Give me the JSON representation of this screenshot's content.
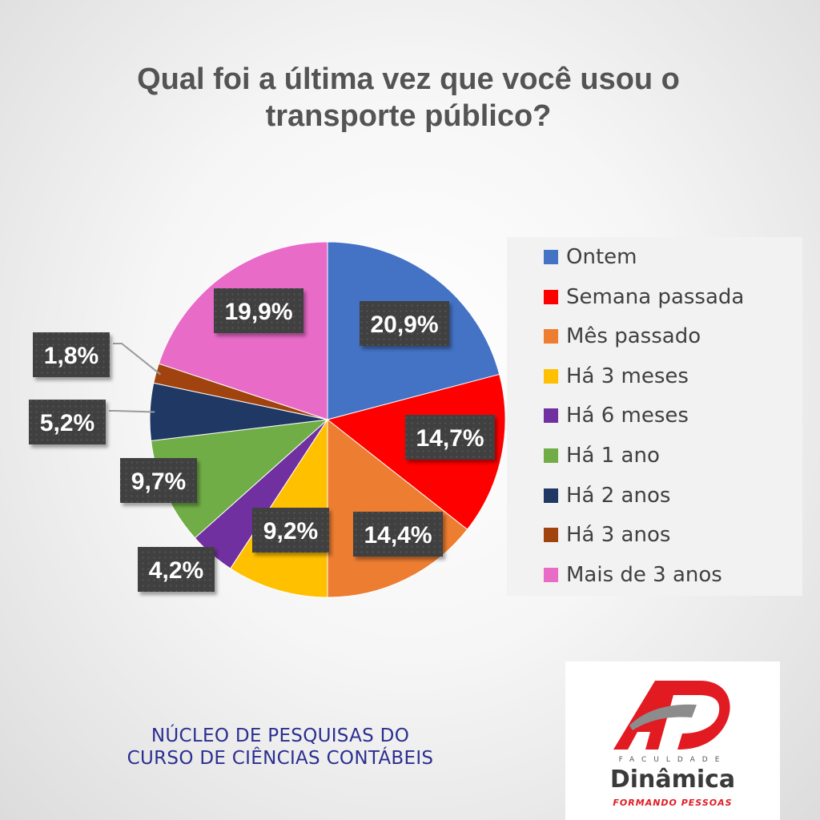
{
  "chart_data": {
    "type": "pie",
    "title": "Qual foi a última vez que você usou o transporte público?",
    "categories": [
      "Ontem",
      "Semana passada",
      "Mês passado",
      "Há 3 meses",
      "Há 6 meses",
      "Há 1 ano",
      "Há 2 anos",
      "Há 3 anos",
      "Mais de 3 anos"
    ],
    "values": [
      20.9,
      14.7,
      14.4,
      9.2,
      4.2,
      9.7,
      5.2,
      1.8,
      19.9
    ],
    "value_labels": [
      "20,9%",
      "14,7%",
      "14,4%",
      "9,2%",
      "4,2%",
      "9,7%",
      "5,2%",
      "1,8%",
      "19,9%"
    ],
    "colors": [
      "#4472C4",
      "#FF0000",
      "#ED7D31",
      "#FFC000",
      "#7030A0",
      "#70AD47",
      "#203864",
      "#A0430F",
      "#E86BC8"
    ],
    "legend_position": "right",
    "start_angle": "12 o'clock, clockwise"
  },
  "footer": {
    "line1": "NÚCLEO DE PESQUISAS DO",
    "line2": "CURSO DE CIÊNCIAS CONTÁBEIS"
  },
  "logo": {
    "faculdade": "FACULDADE",
    "name": "Dinâmica",
    "slogan": "FORMANDO PESSOAS",
    "colors": {
      "red": "#E21B23",
      "gray": "#8C8C8C"
    }
  }
}
